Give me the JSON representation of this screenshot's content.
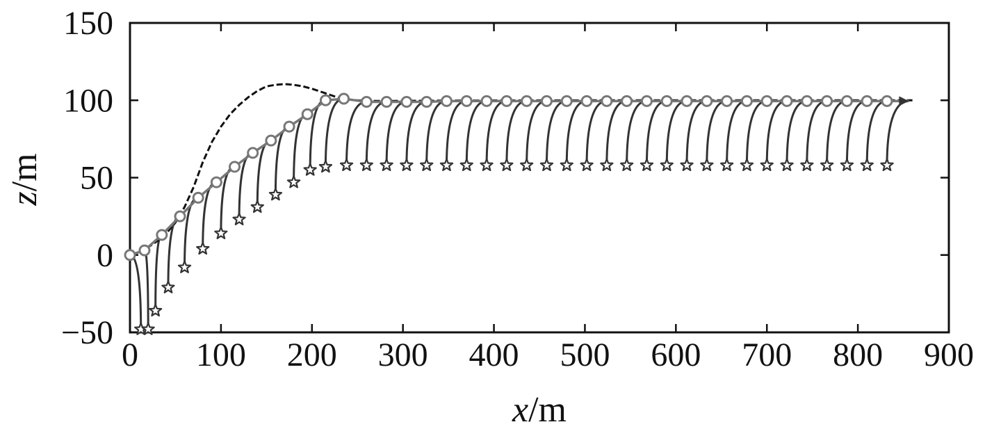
{
  "chart_data": {
    "type": "line",
    "title": "",
    "xlabel": {
      "var": "x",
      "unit": "/m"
    },
    "ylabel": {
      "var": "z",
      "unit": "/m"
    },
    "xlim": [
      0,
      900
    ],
    "ylim": [
      -50,
      150
    ],
    "x_ticks": [
      "0",
      "100",
      "200",
      "300",
      "400",
      "500",
      "600",
      "700",
      "800",
      "900"
    ],
    "y_ticks": [
      "150",
      "100",
      "50",
      "0",
      "−50"
    ],
    "grid": false,
    "legend": "none",
    "colors": {
      "axes": "#111111",
      "reference": "#111111",
      "trajectory": "#777777",
      "connectors": "#333333"
    },
    "series": [
      {
        "role": "reference-path",
        "style": "dashed",
        "points": [
          [
            0,
            0
          ],
          [
            10,
            2
          ],
          [
            20,
            5
          ],
          [
            30,
            9
          ],
          [
            40,
            14
          ],
          [
            50,
            21
          ],
          [
            60,
            31
          ],
          [
            70,
            44
          ],
          [
            80,
            60
          ],
          [
            90,
            73
          ],
          [
            100,
            83
          ],
          [
            110,
            91
          ],
          [
            120,
            97
          ],
          [
            130,
            102
          ],
          [
            140,
            106
          ],
          [
            150,
            109
          ],
          [
            160,
            110
          ],
          [
            170,
            110.5
          ],
          [
            180,
            110
          ],
          [
            190,
            109
          ],
          [
            200,
            107.5
          ],
          [
            210,
            105.5
          ],
          [
            220,
            103.5
          ],
          [
            230,
            101.5
          ],
          [
            240,
            100.5
          ],
          [
            250,
            100
          ],
          [
            260,
            99.7
          ],
          [
            280,
            99.5
          ],
          [
            300,
            99.6
          ],
          [
            350,
            99.8
          ],
          [
            400,
            99.9
          ],
          [
            500,
            100
          ],
          [
            860,
            100
          ]
        ]
      },
      {
        "role": "trajectory",
        "marker": "circle",
        "points": [
          [
            0,
            0
          ],
          [
            16,
            3
          ],
          [
            35,
            13
          ],
          [
            55,
            25
          ],
          [
            75,
            37
          ],
          [
            95,
            47
          ],
          [
            115,
            57
          ],
          [
            135,
            66
          ],
          [
            155,
            74
          ],
          [
            175,
            83
          ],
          [
            195,
            91
          ],
          [
            215,
            100
          ],
          [
            235,
            101
          ],
          [
            260,
            99
          ],
          [
            282,
            99
          ],
          [
            304,
            99
          ],
          [
            326,
            99
          ],
          [
            348,
            99.5
          ],
          [
            370,
            99.5
          ],
          [
            392,
            99.5
          ],
          [
            414,
            99.5
          ],
          [
            436,
            99.5
          ],
          [
            458,
            99.5
          ],
          [
            480,
            99.5
          ],
          [
            502,
            99.5
          ],
          [
            524,
            99.5
          ],
          [
            546,
            99.5
          ],
          [
            568,
            99.5
          ],
          [
            590,
            99.5
          ],
          [
            612,
            99.5
          ],
          [
            634,
            99.5
          ],
          [
            656,
            99.5
          ],
          [
            678,
            99.5
          ],
          [
            700,
            99.5
          ],
          [
            722,
            99.5
          ],
          [
            744,
            99.5
          ],
          [
            766,
            99.5
          ],
          [
            788,
            99.5
          ],
          [
            810,
            99.5
          ],
          [
            832,
            99.5
          ],
          [
            856,
            99.5
          ]
        ]
      },
      {
        "role": "star-positions",
        "marker": "star",
        "points": [
          [
            12,
            -48
          ],
          [
            20,
            -48
          ],
          [
            28,
            -36
          ],
          [
            42,
            -21
          ],
          [
            60,
            -8
          ],
          [
            80,
            4
          ],
          [
            100,
            14
          ],
          [
            120,
            23
          ],
          [
            140,
            31
          ],
          [
            160,
            39
          ],
          [
            180,
            47
          ],
          [
            198,
            55
          ],
          [
            215,
            57
          ],
          [
            238,
            58
          ],
          [
            260,
            58
          ],
          [
            282,
            58
          ],
          [
            304,
            58
          ],
          [
            326,
            58
          ],
          [
            348,
            58
          ],
          [
            370,
            58
          ],
          [
            392,
            58
          ],
          [
            414,
            58
          ],
          [
            436,
            58
          ],
          [
            458,
            58
          ],
          [
            480,
            58
          ],
          [
            502,
            58
          ],
          [
            524,
            58
          ],
          [
            546,
            58
          ],
          [
            568,
            58
          ],
          [
            590,
            58
          ],
          [
            612,
            58
          ],
          [
            634,
            58
          ],
          [
            656,
            58
          ],
          [
            678,
            58
          ],
          [
            700,
            58
          ],
          [
            722,
            58
          ],
          [
            744,
            58
          ],
          [
            766,
            58
          ],
          [
            788,
            58
          ],
          [
            810,
            58
          ],
          [
            832,
            58
          ]
        ]
      }
    ],
    "connections": [
      [
        0,
        0
      ],
      [
        1,
        1
      ],
      [
        2,
        2
      ],
      [
        3,
        3
      ],
      [
        4,
        4
      ],
      [
        5,
        5
      ],
      [
        6,
        6
      ],
      [
        7,
        7
      ],
      [
        8,
        8
      ],
      [
        9,
        9
      ],
      [
        10,
        10
      ],
      [
        11,
        11
      ],
      [
        12,
        12
      ],
      [
        13,
        13
      ],
      [
        14,
        14
      ],
      [
        15,
        15
      ],
      [
        16,
        16
      ],
      [
        17,
        17
      ],
      [
        18,
        18
      ],
      [
        19,
        19
      ],
      [
        20,
        20
      ],
      [
        21,
        21
      ],
      [
        22,
        22
      ],
      [
        23,
        23
      ],
      [
        24,
        24
      ],
      [
        25,
        25
      ],
      [
        26,
        26
      ],
      [
        27,
        27
      ],
      [
        28,
        28
      ],
      [
        29,
        29
      ],
      [
        30,
        30
      ],
      [
        31,
        31
      ],
      [
        32,
        32
      ],
      [
        33,
        33
      ],
      [
        34,
        34
      ],
      [
        35,
        35
      ],
      [
        36,
        36
      ],
      [
        37,
        37
      ],
      [
        38,
        38
      ],
      [
        39,
        39
      ],
      [
        40,
        40
      ]
    ]
  }
}
